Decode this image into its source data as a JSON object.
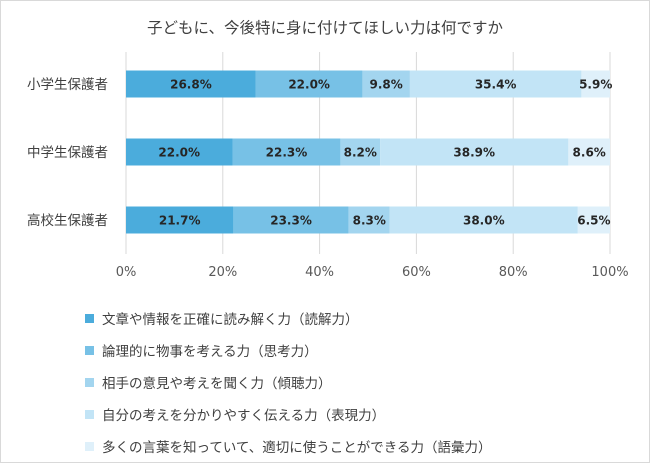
{
  "chart_data": {
    "type": "bar",
    "stacked": true,
    "orientation": "horizontal",
    "percent_stacked": true,
    "title": "子どもに、今後特に身に付けてほしい力は何ですか",
    "categories": [
      "小学生保護者",
      "中学生保護者",
      "高校生保護者"
    ],
    "series": [
      {
        "name": "文章や情報を正確に読み解く力（読解力）",
        "color": "#4bacdc",
        "values": [
          26.8,
          22.0,
          21.7
        ],
        "labels": [
          "26.8%",
          "22.0%",
          "21.7%"
        ]
      },
      {
        "name": "論理的に物事を考える力（思考力）",
        "color": "#77c1e6",
        "values": [
          22.0,
          22.3,
          23.3
        ],
        "labels": [
          "22.0%",
          "22.3%",
          "23.3%"
        ]
      },
      {
        "name": "相手の意見や考えを聞く力（傾聴力）",
        "color": "#a3d5ef",
        "values": [
          9.8,
          8.2,
          8.3
        ],
        "labels": [
          "9.8%",
          "8.2%",
          "8.3%"
        ]
      },
      {
        "name": "自分の考えを分かりやすく伝える力（表現力）",
        "color": "#c2e4f6",
        "values": [
          35.4,
          38.9,
          38.0
        ],
        "labels": [
          "35.4%",
          "38.9%",
          "38.0%"
        ]
      },
      {
        "name": "多くの言葉を知っていて、適切に使うことができる力（語彙力）",
        "color": "#dff0fa",
        "values": [
          5.9,
          8.6,
          6.5
        ],
        "labels": [
          "5.9%",
          "8.6%",
          "6.5%"
        ]
      }
    ],
    "xlim": [
      0,
      100
    ],
    "xticks": [
      "0%",
      "20%",
      "40%",
      "60%",
      "80%",
      "100%"
    ],
    "grid": true,
    "legend_position": "bottom"
  }
}
